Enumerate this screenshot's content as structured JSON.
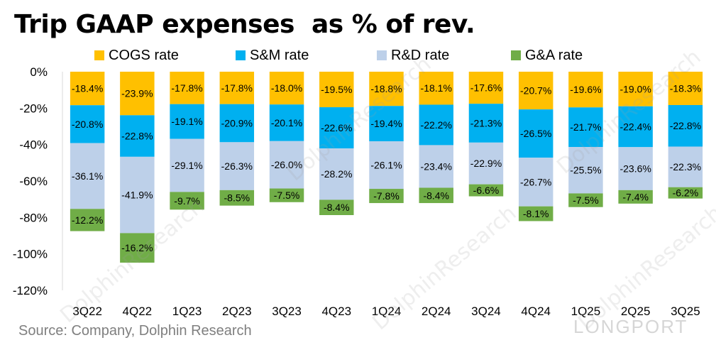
{
  "chart_data": {
    "type": "bar",
    "stacked": true,
    "title": "Trip GAAP expenses  as % of rev.",
    "source": "Source: Company, Dolphin Research",
    "categories": [
      "3Q22",
      "4Q22",
      "1Q23",
      "2Q23",
      "3Q23",
      "4Q23",
      "1Q24",
      "2Q24",
      "3Q24",
      "4Q24",
      "1Q25",
      "2Q25",
      "3Q25"
    ],
    "ylim": [
      -120,
      0
    ],
    "yticks": [
      "0%",
      "-20%",
      "-40%",
      "-60%",
      "-80%",
      "-100%",
      "-120%"
    ],
    "legend_position": "top",
    "series": [
      {
        "name": "COGS rate",
        "color": "#ffc000",
        "values": [
          -18.4,
          -23.9,
          -17.8,
          -17.8,
          -18.0,
          -19.5,
          -18.8,
          -18.1,
          -17.6,
          -20.7,
          -19.6,
          -19.0,
          -18.3
        ],
        "labels": [
          "-18.4%",
          "-23.9%",
          "-17.8%",
          "-17.8%",
          "-18.0%",
          "-19.5%",
          "-18.8%",
          "-18.1%",
          "-17.6%",
          "-20.7%",
          "-19.6%",
          "-19.0%",
          "-18.3%"
        ]
      },
      {
        "name": "S&M rate",
        "color": "#00b0f0",
        "values": [
          -20.8,
          -22.8,
          -19.1,
          -20.9,
          -20.1,
          -22.6,
          -19.4,
          -22.2,
          -21.3,
          -26.5,
          -21.7,
          -22.4,
          -22.8
        ],
        "labels": [
          "-20.8%",
          "-22.8%",
          "-19.1%",
          "-20.9%",
          "-20.1%",
          "-22.6%",
          "-19.4%",
          "-22.2%",
          "-21.3%",
          "-26.5%",
          "-21.7%",
          "-22.4%",
          "-22.8%"
        ]
      },
      {
        "name": "R&D rate",
        "color": "#bdd0e9",
        "values": [
          -36.1,
          -41.9,
          -29.1,
          -26.3,
          -26.0,
          -28.2,
          -26.1,
          -23.4,
          -22.9,
          -26.7,
          -25.5,
          -23.6,
          -22.3
        ],
        "labels": [
          "-36.1%",
          "-41.9%",
          "-29.1%",
          "-26.3%",
          "-26.0%",
          "-28.2%",
          "-26.1%",
          "-23.4%",
          "-22.9%",
          "-26.7%",
          "-25.5%",
          "-23.6%",
          "-22.3%"
        ]
      },
      {
        "name": "G&A rate",
        "color": "#70ad47",
        "values": [
          -12.2,
          -16.2,
          -9.7,
          -8.5,
          -7.5,
          -8.4,
          -7.8,
          -8.4,
          -6.6,
          -8.1,
          -7.5,
          -7.4,
          -6.2
        ],
        "labels": [
          "-12.2%",
          "-16.2%",
          "-9.7%",
          "-8.5%",
          "-7.5%",
          "-8.4%",
          "-7.8%",
          "-8.4%",
          "-6.6%",
          "-8.1%",
          "-7.5%",
          "-7.4%",
          "-6.2%"
        ]
      }
    ],
    "watermark": "DolphinResearch",
    "brand": "LONGPORT"
  }
}
